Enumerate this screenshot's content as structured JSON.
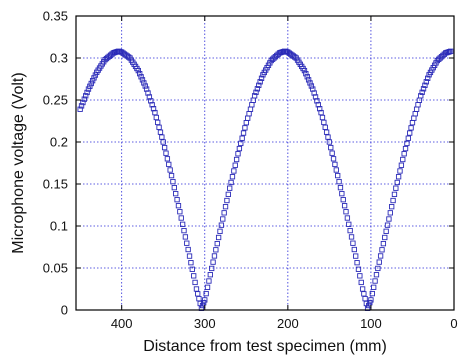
{
  "chart_data": {
    "type": "scatter",
    "title": "",
    "xlabel": "Distance from test specimen (mm)",
    "ylabel": "Microphone voltage (Volt)",
    "xlim": [
      455,
      0
    ],
    "ylim": [
      0,
      0.35
    ],
    "x_reversed": true,
    "grid": true,
    "grid_style": "dotted",
    "marker": "open-square",
    "colors": {
      "series": "#2b2bb8",
      "grid": "#2a2ad8",
      "axis": "#000000"
    },
    "x_ticks": [
      {
        "value": 400,
        "label": "400"
      },
      {
        "value": 300,
        "label": "300"
      },
      {
        "value": 200,
        "label": "200"
      },
      {
        "value": 100,
        "label": "100"
      },
      {
        "value": 0,
        "label": "0"
      }
    ],
    "y_ticks": [
      {
        "value": 0,
        "label": "0"
      },
      {
        "value": 0.05,
        "label": "0.05"
      },
      {
        "value": 0.1,
        "label": "0.1"
      },
      {
        "value": 0.15,
        "label": "0.15"
      },
      {
        "value": 0.2,
        "label": "0.2"
      },
      {
        "value": 0.25,
        "label": "0.25"
      },
      {
        "value": 0.3,
        "label": "0.3"
      },
      {
        "value": 0.35,
        "label": "0.35"
      }
    ],
    "series": [
      {
        "x": [
          450,
          440,
          430,
          420,
          410,
          404,
          400,
          390,
          380,
          370,
          360,
          350,
          340,
          330,
          320,
          310,
          304,
          300,
          290,
          280,
          270,
          260,
          250,
          240,
          230,
          220,
          210,
          204,
          200,
          190,
          180,
          170,
          160,
          150,
          140,
          130,
          120,
          110,
          104,
          100,
          90,
          80,
          70,
          60,
          50,
          40,
          30,
          20,
          10,
          4
        ],
        "y": [
          0.239,
          0.263,
          0.283,
          0.298,
          0.306,
          0.308,
          0.307,
          0.3,
          0.285,
          0.263,
          0.235,
          0.2,
          0.16,
          0.117,
          0.072,
          0.025,
          0.002,
          0.012,
          0.057,
          0.101,
          0.145,
          0.186,
          0.223,
          0.255,
          0.28,
          0.297,
          0.306,
          0.308,
          0.307,
          0.3,
          0.285,
          0.263,
          0.235,
          0.2,
          0.16,
          0.117,
          0.072,
          0.025,
          0.002,
          0.012,
          0.057,
          0.101,
          0.145,
          0.186,
          0.223,
          0.255,
          0.28,
          0.297,
          0.306,
          0.308
        ]
      }
    ]
  }
}
